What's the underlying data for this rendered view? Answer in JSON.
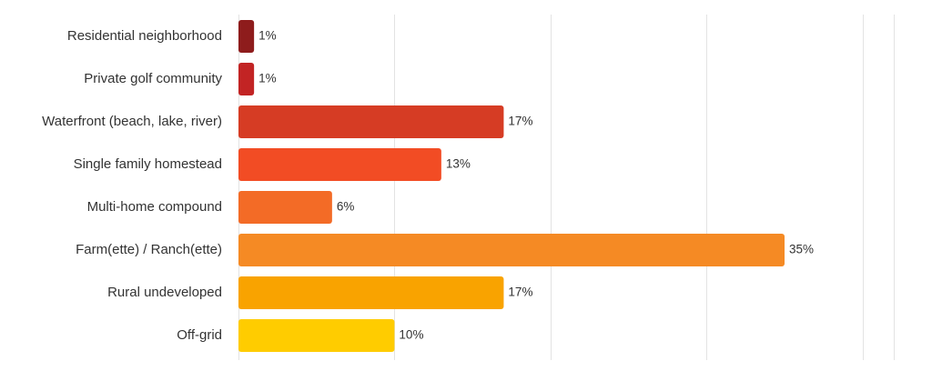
{
  "chart_data": {
    "type": "bar",
    "orientation": "horizontal",
    "categories": [
      "Residential neighborhood",
      "Private golf community",
      "Waterfront (beach, lake, river)",
      "Single family homestead",
      "Multi-home compound",
      "Farm(ette) / Ranch(ette)",
      "Rural undeveloped",
      "Off-grid"
    ],
    "values": [
      1,
      1,
      17,
      13,
      6,
      35,
      17,
      10
    ],
    "value_labels": [
      "1%",
      "1%",
      "17%",
      "13%",
      "6%",
      "35%",
      "17%",
      "10%"
    ],
    "colors": [
      "#8e1c1c",
      "#c22424",
      "#d63c24",
      "#f24c24",
      "#f36b26",
      "#f58a24",
      "#f9a300",
      "#ffcc00"
    ],
    "xlim": [
      0,
      42
    ],
    "grid_step": 10,
    "grid": true,
    "title": "",
    "xlabel": "",
    "ylabel": ""
  }
}
